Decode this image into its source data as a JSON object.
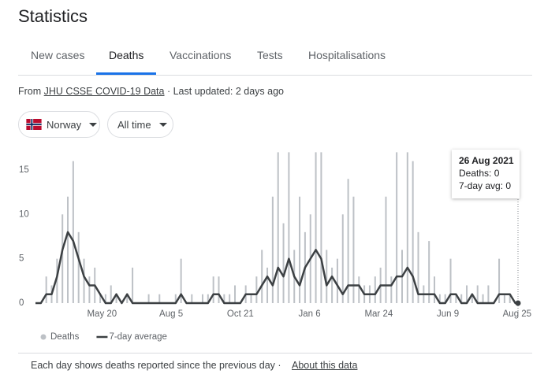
{
  "header": {
    "title": "Statistics"
  },
  "tabs": {
    "items": [
      "New cases",
      "Deaths",
      "Vaccinations",
      "Tests",
      "Hospitalisations"
    ],
    "active": 1
  },
  "source": {
    "prefix": "From",
    "link": "JHU CSSE COVID-19 Data",
    "updated": "· Last updated: 2 days ago"
  },
  "filters": {
    "location": "Norway",
    "range": "All time"
  },
  "chart_data": {
    "type": "combo",
    "x": [
      0,
      6,
      12,
      18,
      24,
      30,
      36,
      42,
      48,
      54,
      60,
      66,
      72,
      78,
      84,
      90,
      96,
      102,
      108,
      114,
      120,
      126,
      132,
      138,
      144,
      150,
      156,
      162,
      168,
      174,
      180,
      186,
      192,
      198,
      204,
      210,
      216,
      222,
      228,
      234,
      240,
      246,
      252,
      258,
      264,
      270,
      276,
      282,
      288,
      294,
      300,
      306,
      312,
      318,
      324,
      330,
      336,
      342,
      348,
      354,
      360,
      366,
      372,
      378,
      384,
      390,
      396,
      402,
      408,
      414,
      420,
      426,
      432,
      438,
      444,
      450,
      456,
      462,
      468,
      474,
      480,
      486,
      492,
      498,
      504,
      510,
      516,
      522,
      528,
      534,
      537
    ],
    "series": [
      {
        "name": "Deaths",
        "type": "bar",
        "color": "#bdc1c6",
        "values": [
          0,
          0,
          3,
          2,
          5,
          10,
          12,
          16,
          8,
          5,
          3,
          4,
          1,
          1,
          2,
          1,
          0,
          1,
          4,
          0,
          0,
          1,
          0,
          1,
          0,
          0,
          1,
          5,
          0,
          1,
          0,
          1,
          1,
          3,
          3,
          1,
          1,
          2,
          0,
          2,
          1,
          3,
          6,
          4,
          12,
          17,
          9,
          17,
          6,
          12,
          8,
          10,
          17,
          17,
          6,
          4,
          5,
          10,
          14,
          12,
          3,
          2,
          2,
          3,
          4,
          12,
          3,
          17,
          6,
          17,
          16,
          8,
          2,
          7,
          3,
          1,
          1,
          5,
          1,
          1,
          2,
          1,
          2,
          1,
          2,
          0,
          5,
          1,
          1,
          0,
          0
        ]
      },
      {
        "name": "7-day average",
        "type": "line",
        "color": "#3c4043",
        "values": [
          0,
          0,
          1,
          1,
          3,
          6,
          8,
          7,
          5,
          3,
          2,
          2,
          1,
          0,
          0,
          1,
          0,
          1,
          0,
          0,
          0,
          0,
          0,
          0,
          0,
          0,
          0,
          1,
          0,
          0,
          0,
          0,
          0,
          1,
          1,
          0,
          0,
          0,
          0,
          1,
          1,
          1,
          2,
          3,
          2,
          4,
          3,
          5,
          3,
          2,
          4,
          5,
          6,
          5,
          2,
          3,
          2,
          1,
          2,
          2,
          2,
          1,
          1,
          1,
          2,
          2,
          2,
          3,
          3,
          4,
          3,
          1,
          1,
          1,
          1,
          0,
          0,
          1,
          1,
          0,
          0,
          1,
          0,
          0,
          0,
          0,
          1,
          1,
          1,
          0,
          0
        ]
      }
    ],
    "xlim": [
      0,
      537
    ],
    "xticks": [
      {
        "value": 74,
        "label": "May 20"
      },
      {
        "value": 151,
        "label": "Aug 5"
      },
      {
        "value": 228,
        "label": "Oct 21"
      },
      {
        "value": 305,
        "label": "Jan 6"
      },
      {
        "value": 382,
        "label": "Mar 24"
      },
      {
        "value": 459,
        "label": "Jun 9"
      },
      {
        "value": 536,
        "label": "Aug 25"
      }
    ],
    "ylim": [
      0,
      17.3
    ],
    "yticks": [
      0,
      5,
      10,
      15
    ],
    "grid": false,
    "tooltip": {
      "x": 537,
      "date": "26 Aug 2021",
      "deaths": "Deaths: 0",
      "average": "7-day avg: 0"
    }
  },
  "footer": {
    "note": "Each day shows deaths reported since the previous day",
    "link": "About this data"
  }
}
